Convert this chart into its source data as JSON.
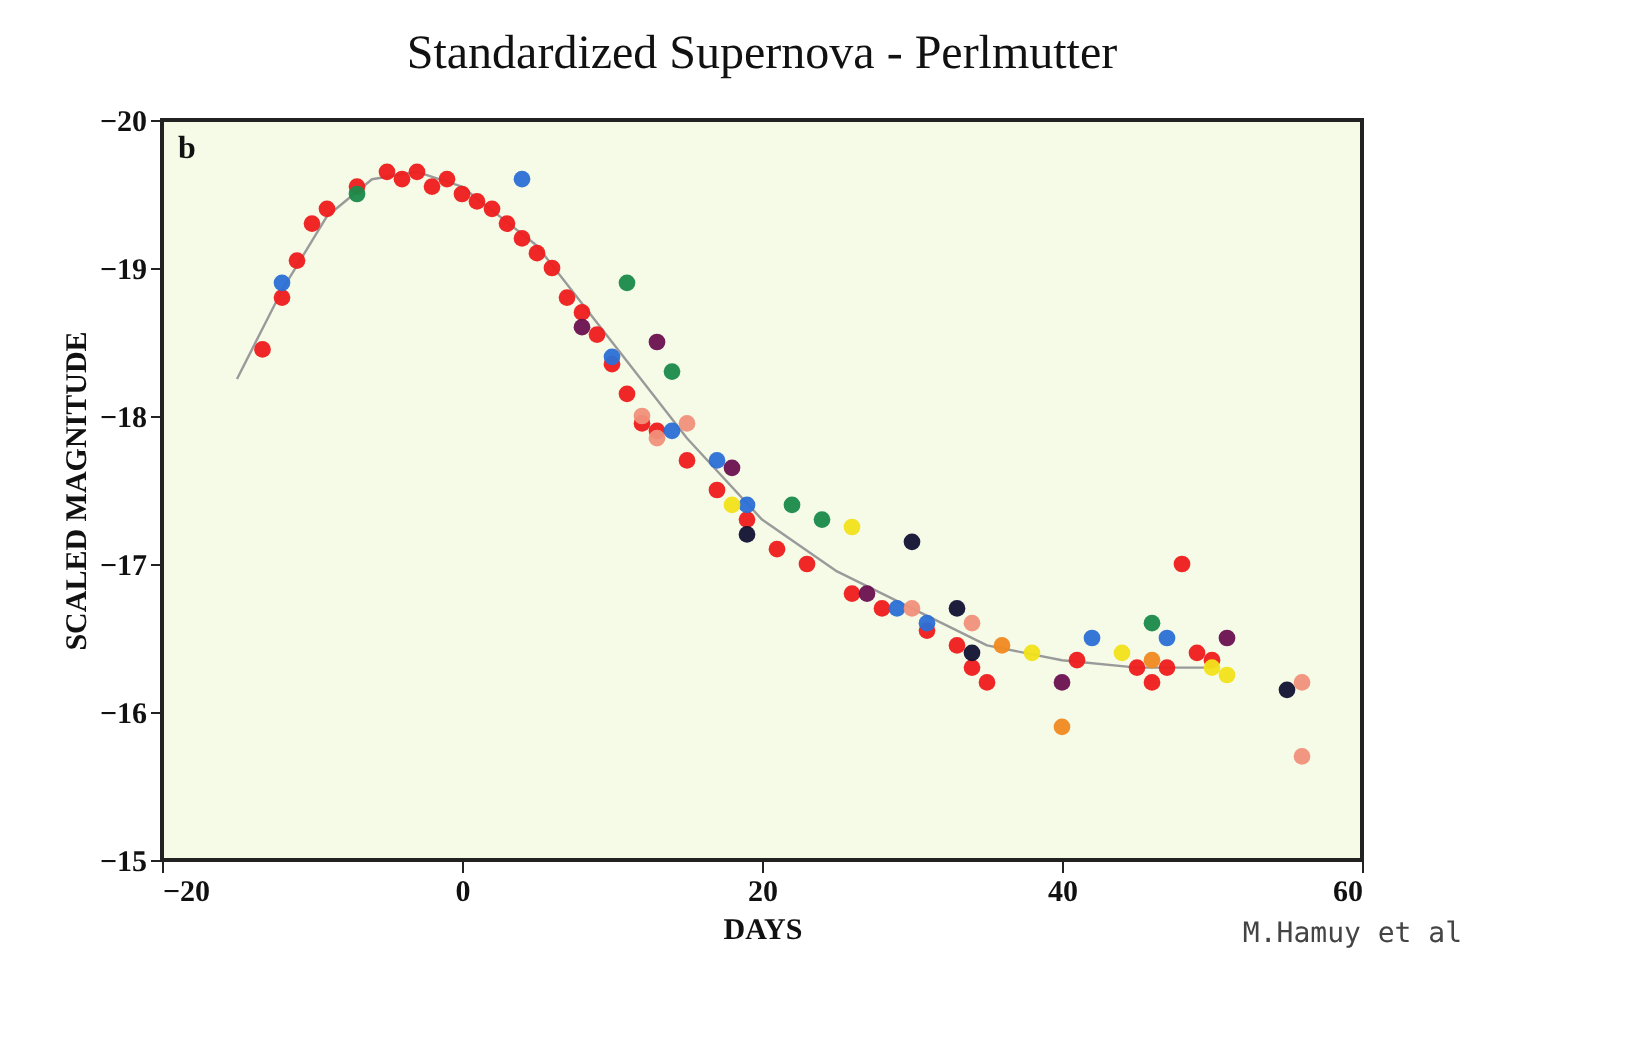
{
  "chart_data": {
    "type": "scatter",
    "title": "Standardized Supernova - Perlmutter",
    "xlabel": "DAYS",
    "ylabel": "SCALED MAGNITUDE",
    "xlim": [
      -20,
      60
    ],
    "xticks": [
      -20,
      0,
      20,
      40,
      60
    ],
    "ylim": [
      -15,
      -20
    ],
    "yticks": [
      -20,
      -19,
      -18,
      -17,
      -16,
      -15
    ],
    "grid": false,
    "marker": "circle",
    "annotations": [
      "b",
      "M.Hamuy et al"
    ],
    "series": [
      {
        "type": "line",
        "color": "#9a9a9a",
        "marker": "none",
        "x": [
          -15,
          -12,
          -9,
          -6,
          -3,
          0,
          5,
          10,
          15,
          20,
          25,
          30,
          35,
          40,
          45,
          50
        ],
        "values": [
          -18.25,
          -18.85,
          -19.35,
          -19.6,
          -19.65,
          -19.55,
          -19.15,
          -18.5,
          -17.85,
          -17.3,
          -16.95,
          -16.7,
          -16.45,
          -16.35,
          -16.3,
          -16.3
        ]
      },
      {
        "color": "#ee1c1c",
        "x": [
          -13.3,
          -12,
          -11,
          -10,
          -9,
          -7,
          -5,
          -4,
          -3,
          -2,
          -1,
          0,
          1,
          2,
          3,
          4,
          5,
          6,
          7,
          8,
          9,
          10,
          11,
          12,
          13,
          15,
          17,
          19,
          21,
          23,
          26,
          28,
          31,
          33,
          34,
          35,
          41,
          45,
          46,
          47,
          48,
          49,
          50
        ],
        "values": [
          -18.45,
          -18.8,
          -19.05,
          -19.3,
          -19.4,
          -19.55,
          -19.65,
          -19.6,
          -19.65,
          -19.55,
          -19.6,
          -19.5,
          -19.45,
          -19.4,
          -19.3,
          -19.2,
          -19.1,
          -19.0,
          -18.8,
          -18.7,
          -18.55,
          -18.35,
          -18.15,
          -17.95,
          -17.9,
          -17.7,
          -17.5,
          -17.3,
          -17.1,
          -17.0,
          -16.8,
          -16.7,
          -16.55,
          -16.45,
          -16.3,
          -16.2,
          -16.35,
          -16.3,
          -16.2,
          -16.3,
          -17.0,
          -16.4,
          -16.35
        ]
      },
      {
        "color": "#2a6fd6",
        "x": [
          -12,
          4,
          10,
          14,
          17,
          19,
          29,
          31,
          42,
          47
        ],
        "values": [
          -18.9,
          -19.6,
          -18.4,
          -17.9,
          -17.7,
          -17.4,
          -16.7,
          -16.6,
          -16.5,
          -16.5
        ]
      },
      {
        "color": "#1a8a4a",
        "x": [
          -7,
          11,
          14,
          22,
          24,
          46
        ],
        "values": [
          -19.5,
          -18.9,
          -18.3,
          -17.4,
          -17.3,
          -16.6
        ]
      },
      {
        "color": "#111133",
        "x": [
          19,
          30,
          33,
          34,
          55
        ],
        "values": [
          -17.2,
          -17.15,
          -16.7,
          -16.4,
          -16.15
        ]
      },
      {
        "color": "#6a1050",
        "x": [
          8,
          13,
          18,
          27,
          40,
          51
        ],
        "values": [
          -18.6,
          -18.5,
          -17.65,
          -16.8,
          -16.2,
          -16.5
        ]
      },
      {
        "color": "#f2e21a",
        "x": [
          18,
          26,
          38,
          44,
          50,
          51
        ],
        "values": [
          -17.4,
          -17.25,
          -16.4,
          -16.4,
          -16.3,
          -16.25
        ]
      },
      {
        "color": "#f0907a",
        "x": [
          12,
          13,
          15,
          30,
          34,
          56,
          56
        ],
        "values": [
          -18.0,
          -17.85,
          -17.95,
          -16.7,
          -16.6,
          -16.2,
          -15.7
        ]
      },
      {
        "color": "#f08a20",
        "x": [
          40,
          36,
          46
        ],
        "values": [
          -15.9,
          -16.45,
          -16.35
        ]
      }
    ]
  }
}
